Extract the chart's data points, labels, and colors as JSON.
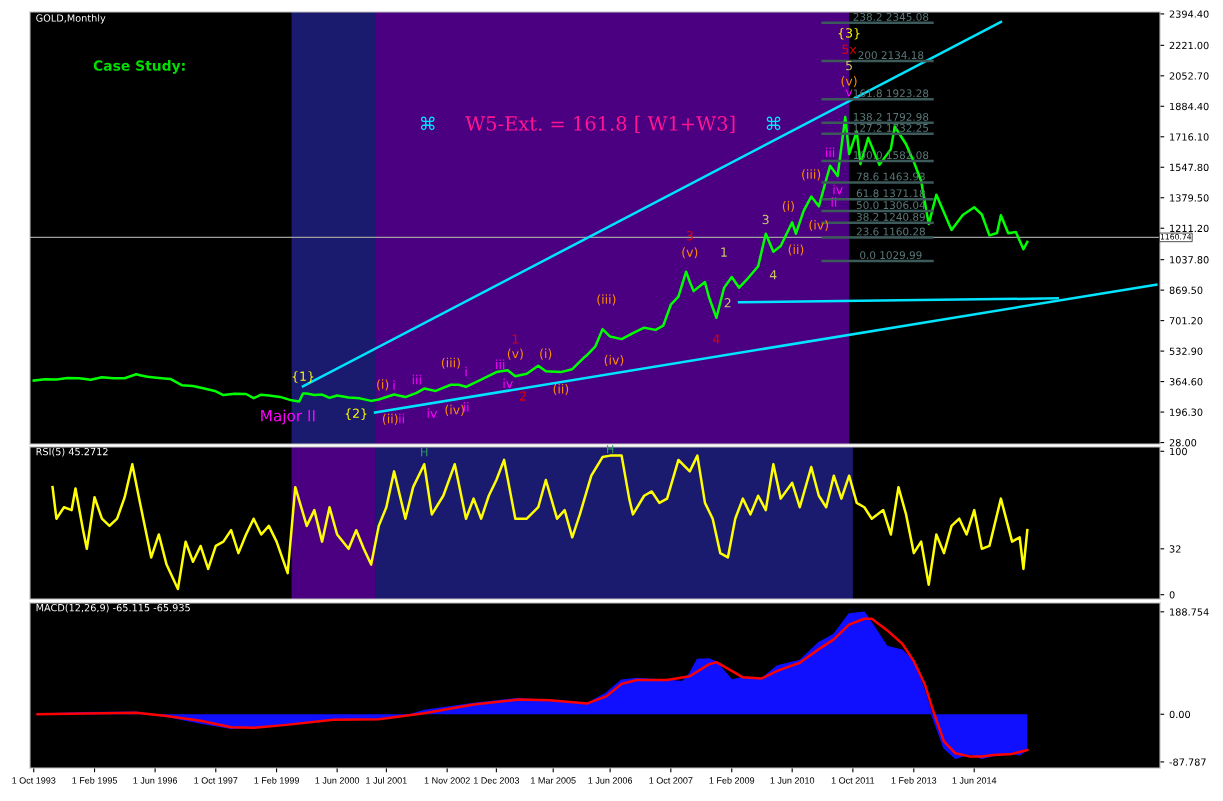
{
  "chart_data": [
    {
      "type": "line",
      "title": "GOLD,Monthly",
      "tick_labels": "y",
      "xlim": [
        "1993-09",
        "2018-07"
      ],
      "ylim": [
        20,
        2405
      ],
      "yticks": [
        {
          "value": 28,
          "label": "28.00"
        },
        {
          "value": 196.3,
          "label": "196.30"
        },
        {
          "value": 364.6,
          "label": "364.60"
        },
        {
          "value": 532.9,
          "label": "532.90"
        },
        {
          "value": 701.2,
          "label": "701.20"
        },
        {
          "value": 869.5,
          "label": "869.50"
        },
        {
          "value": 1037.8,
          "label": "1037.80"
        },
        {
          "value": 1211.2,
          "label": "1211.20"
        },
        {
          "value": 1379.5,
          "label": "1379.50"
        },
        {
          "value": 1547.8,
          "label": "1547.80"
        },
        {
          "value": 1716.1,
          "label": "1716.10"
        },
        {
          "value": 1884.4,
          "label": "1884.40"
        },
        {
          "value": 2052.7,
          "label": "2052.70"
        },
        {
          "value": 2221,
          "label": "2221.00"
        },
        {
          "value": 2394.4,
          "label": "2394.40"
        }
      ],
      "bands": [
        {
          "axis": "x",
          "from": "1999-06",
          "to": "2001-04",
          "color": "#1a1a6e"
        },
        {
          "axis": "x",
          "from": "2001-04",
          "to": "2011-09",
          "color": "#4b0082"
        }
      ],
      "ref_lines": [
        {
          "axis": "y",
          "value": 1160.74,
          "label": "1160.74",
          "color": "#a0a0a0"
        }
      ],
      "series": [
        {
          "color": "#00ff00",
          "x": [
            "1993-10",
            "1994-01",
            "1994-04",
            "1994-07",
            "1994-10",
            "1995-01",
            "1995-04",
            "1995-07",
            "1995-10",
            "1996-01",
            "1996-02",
            "1996-04",
            "1996-07",
            "1996-10",
            "1997-01",
            "1997-04",
            "1997-07",
            "1997-10",
            "1997-12",
            "1998-03",
            "1998-06",
            "1998-08",
            "1998-10",
            "1998-12",
            "1999-03",
            "1999-06",
            "1999-08",
            "1999-09",
            "1999-10",
            "1999-12",
            "2000-02",
            "2000-04",
            "2000-06",
            "2000-09",
            "2000-12",
            "2001-03",
            "2001-05",
            "2001-09",
            "2001-12",
            "2002-03",
            "2002-05",
            "2002-08",
            "2002-12",
            "2003-02",
            "2003-04",
            "2003-08",
            "2003-12",
            "2004-03",
            "2004-05",
            "2004-08",
            "2004-11",
            "2005-01",
            "2005-05",
            "2005-08",
            "2005-11",
            "2005-12",
            "2006-02",
            "2006-04",
            "2006-06",
            "2006-09",
            "2006-12",
            "2007-03",
            "2007-06",
            "2007-08",
            "2007-10",
            "2007-12",
            "2008-02",
            "2008-03",
            "2008-04",
            "2008-07",
            "2008-08",
            "2008-10",
            "2008-12",
            "2009-02",
            "2009-04",
            "2009-06",
            "2009-09",
            "2009-11",
            "2010-01",
            "2010-03",
            "2010-06",
            "2010-07",
            "2010-09",
            "2010-11",
            "2011-01",
            "2011-04",
            "2011-06",
            "2011-08",
            "2011-09",
            "2011-11",
            "2011-12",
            "2012-02",
            "2012-05",
            "2012-08",
            "2012-09",
            "2012-12",
            "2013-02",
            "2013-04",
            "2013-06",
            "2013-08",
            "2013-12",
            "2014-03",
            "2014-06",
            "2014-08",
            "2014-10",
            "2014-12",
            "2015-01",
            "2015-03",
            "2015-05",
            "2015-07",
            "2015-08"
          ],
          "values": [
            370,
            377,
            376,
            384,
            383,
            375,
            389,
            383,
            383,
            405,
            400,
            391,
            385,
            379,
            345,
            340,
            326,
            311,
            290,
            297,
            296,
            273,
            292,
            288,
            280,
            261,
            255,
            299,
            299,
            290,
            293,
            275,
            288,
            277,
            272,
            258,
            266,
            293,
            279,
            302,
            326,
            313,
            347,
            347,
            336,
            375,
            417,
            427,
            394,
            408,
            452,
            422,
            417,
            433,
            496,
            513,
            557,
            654,
            613,
            599,
            632,
            662,
            650,
            673,
            789,
            834,
            971,
            916,
            864,
            914,
            833,
            717,
            882,
            942,
            883,
            927,
            1001,
            1181,
            1081,
            1113,
            1244,
            1181,
            1307,
            1386,
            1332,
            1556,
            1500,
            1825,
            1620,
            1746,
            1565,
            1710,
            1561,
            1648,
            1773,
            1675,
            1578,
            1472,
            1234,
            1396,
            1202,
            1284,
            1327,
            1287,
            1172,
            1185,
            1283,
            1183,
            1190,
            1095,
            1135
          ]
        },
        {
          "color": "#00e5ff",
          "x": [
            "1999-09",
            "2015-01"
          ],
          "values": [
            338,
            2350
          ]
        },
        {
          "color": "#00e5ff",
          "x": [
            "2001-04",
            "2018-06"
          ],
          "values": [
            194,
            900
          ]
        },
        {
          "color": "#00e5ff",
          "x": [
            "2016-04",
            "2009-04"
          ],
          "values": [
            824,
            802
          ]
        },
        {
          "color": "#3c5a5a",
          "x": [
            "2011-02",
            "2013-07"
          ],
          "values": [
            2345.08,
            2345.08
          ]
        },
        {
          "color": "#3c5a5a",
          "x": [
            "2011-02",
            "2013-07"
          ],
          "values": [
            2134.18,
            2134.18
          ]
        },
        {
          "color": "#3c5a5a",
          "x": [
            "2011-02",
            "2013-07"
          ],
          "values": [
            1923.28,
            1923.28
          ]
        },
        {
          "color": "#3c5a5a",
          "x": [
            "2011-02",
            "2013-07"
          ],
          "values": [
            1792.98,
            1792.98
          ]
        },
        {
          "color": "#3c5a5a",
          "x": [
            "2011-02",
            "2013-07"
          ],
          "values": [
            1732.25,
            1732.25
          ]
        },
        {
          "color": "#3c5a5a",
          "x": [
            "2011-02",
            "2013-07"
          ],
          "values": [
            1582.08,
            1582.08
          ]
        },
        {
          "color": "#3c5a5a",
          "x": [
            "2011-02",
            "2013-07"
          ],
          "values": [
            1463.93,
            1463.93
          ]
        },
        {
          "color": "#3c5a5a",
          "x": [
            "2011-02",
            "2013-07"
          ],
          "values": [
            1371.18,
            1371.18
          ]
        },
        {
          "color": "#3c5a5a",
          "x": [
            "2011-02",
            "2013-07"
          ],
          "values": [
            1306.04,
            1306.04
          ]
        },
        {
          "color": "#3c5a5a",
          "x": [
            "2011-02",
            "2013-07"
          ],
          "values": [
            1240.89,
            1240.89
          ]
        },
        {
          "color": "#3c5a5a",
          "x": [
            "2011-02",
            "2013-07"
          ],
          "values": [
            1160.28,
            1160.28
          ]
        },
        {
          "color": "#3c5a5a",
          "x": [
            "2011-02",
            "2013-07"
          ],
          "values": [
            1029.99,
            1029.99
          ]
        }
      ],
      "annotations": [
        "Case Study:",
        "⌘",
        "W5-Ext. = 161.8 [ W1+W3]",
        "⌘",
        "{1}",
        "Major II",
        "{2}",
        "{3}",
        "5x",
        "5",
        "(v)",
        "v",
        "3",
        "(v)",
        "4",
        "1",
        "2",
        "3",
        "4",
        "(i)",
        "(ii)",
        "(iii)",
        "(iv)",
        "iii",
        "ii",
        "iv",
        "(i)",
        "(ii)",
        "i",
        "ii",
        "iii",
        "iv",
        "(iii)",
        "(iv)",
        "i",
        "ii",
        "iii",
        "iv",
        "(v)",
        "1",
        "2",
        "(i)",
        "(ii)",
        "(iii)",
        "(iv)",
        {
          "text": "238.2 2345.08",
          "x": "2012-08",
          "y": 2345.08
        },
        {
          "text": "200 2134.18",
          "x": "2012-08",
          "y": 2134.18
        },
        {
          "text": "161.8 1923.28",
          "x": "2012-08",
          "y": 1923.28
        },
        {
          "text": "138.2 1792.98",
          "x": "2012-08",
          "y": 1792.98
        },
        {
          "text": "127.2 1732.25",
          "x": "2012-08",
          "y": 1732.25
        },
        {
          "text": "100.0 1582.08",
          "x": "2012-08",
          "y": 1582.08
        },
        {
          "text": "78.6 1463.93",
          "x": "2012-08",
          "y": 1463.93
        },
        {
          "text": "61.8 1371.18",
          "x": "2012-08",
          "y": 1371.18
        },
        {
          "text": "50.0 1306.04",
          "x": "2012-08",
          "y": 1306.04
        },
        {
          "text": "38.2 1240.89",
          "x": "2012-08",
          "y": 1240.89
        },
        {
          "text": "23.6 1160.28",
          "x": "2012-08",
          "y": 1160.28
        },
        {
          "text": "0.0 1029.99",
          "x": "2012-08",
          "y": 1029.99
        }
      ]
    },
    {
      "type": "line",
      "title": "RSI(5) 45.2712",
      "tick_labels": "y",
      "xlim": [
        "1993-09",
        "2018-07"
      ],
      "ylim": [
        -3,
        103
      ],
      "yticks": [
        0,
        32,
        100
      ],
      "bands": [
        {
          "axis": "x",
          "from": "1999-06",
          "to": "2001-04",
          "color": "#4b0082"
        },
        {
          "axis": "x",
          "from": "2001-04",
          "to": "2011-10",
          "color": "#1a1a6e"
        }
      ],
      "series": [
        {
          "color": "#ffff00",
          "x": [
            "1994-03",
            "1994-04",
            "1994-06",
            "1994-08",
            "1994-09",
            "1994-11",
            "1994-12",
            "1995-02",
            "1995-04",
            "1995-06",
            "1995-08",
            "1995-10",
            "1995-12",
            "1996-02",
            "1996-05",
            "1996-07",
            "1996-09",
            "1996-12",
            "1997-02",
            "1997-04",
            "1997-06",
            "1997-08",
            "1997-10",
            "1997-12",
            "1998-02",
            "1998-04",
            "1998-06",
            "1998-08",
            "1998-10",
            "1998-12",
            "1999-02",
            "1999-05",
            "1999-07",
            "1999-10",
            "1999-12",
            "2000-02",
            "2000-04",
            "2000-06",
            "2000-09",
            "2000-11",
            "2001-01",
            "2001-03",
            "2001-05",
            "2001-07",
            "2001-09",
            "2001-12",
            "2002-02",
            "2002-05",
            "2002-07",
            "2002-10",
            "2003-01",
            "2003-04",
            "2003-06",
            "2003-08",
            "2003-10",
            "2003-12",
            "2004-02",
            "2004-05",
            "2004-08",
            "2004-11",
            "2005-01",
            "2005-04",
            "2005-06",
            "2005-08",
            "2005-10",
            "2006-01",
            "2006-04",
            "2006-06",
            "2006-09",
            "2006-11",
            "2006-12",
            "2007-03",
            "2007-05",
            "2007-07",
            "2007-09",
            "2007-12",
            "2008-03",
            "2008-05",
            "2008-07",
            "2008-09",
            "2008-11",
            "2009-01",
            "2009-03",
            "2009-05",
            "2009-07",
            "2009-09",
            "2009-11",
            "2010-01",
            "2010-03",
            "2010-06",
            "2010-08",
            "2010-11",
            "2011-01",
            "2011-03",
            "2011-05",
            "2011-07",
            "2011-09",
            "2011-11",
            "2012-01",
            "2012-03",
            "2012-06",
            "2012-08",
            "2012-10",
            "2012-12",
            "2013-02",
            "2013-04",
            "2013-06",
            "2013-08",
            "2013-10",
            "2013-12",
            "2014-02",
            "2014-04",
            "2014-06",
            "2014-08",
            "2014-10",
            "2015-01",
            "2015-04",
            "2015-06",
            "2015-07",
            "2015-08"
          ],
          "values": [
            75,
            53,
            61,
            59,
            74,
            45,
            32,
            68,
            53,
            48,
            53,
            68,
            91,
            64,
            26,
            42,
            21,
            4,
            37,
            23,
            34,
            18,
            34,
            37,
            45,
            29,
            42,
            53,
            42,
            48,
            37,
            15,
            75,
            48,
            59,
            37,
            61,
            42,
            32,
            45,
            32,
            21,
            48,
            61,
            86,
            53,
            75,
            91,
            56,
            69,
            91,
            53,
            67,
            53,
            69,
            80,
            94,
            53,
            53,
            61,
            80,
            53,
            59,
            40,
            56,
            83,
            96,
            97,
            97,
            67,
            56,
            69,
            72,
            64,
            67,
            94,
            86,
            97,
            64,
            53,
            29,
            26,
            53,
            67,
            56,
            69,
            59,
            91,
            67,
            78,
            61,
            89,
            69,
            61,
            83,
            67,
            83,
            64,
            61,
            53,
            59,
            42,
            75,
            56,
            29,
            37,
            7,
            42,
            29,
            48,
            53,
            42,
            59,
            32,
            34,
            67,
            37,
            40,
            18,
            45
          ]
        }
      ],
      "annotations": [
        {
          "text": "H",
          "x": "2002-05",
          "y": 95
        },
        {
          "text": "H",
          "x": "2006-06",
          "y": 97
        }
      ]
    },
    {
      "type": "line",
      "title": "MACD(12,26,9) -65.115 -65.935",
      "xlim": [
        "1993-09",
        "2018-07"
      ],
      "ylim": [
        -99,
        205
      ],
      "yticks": [
        {
          "value": 188.754,
          "label": "188.754"
        },
        {
          "value": 0,
          "label": "0.00"
        },
        {
          "value": -87.787,
          "label": "-87.787"
        }
      ],
      "xticks": [
        {
          "value": "1993-10-01",
          "label": "1 Oct 1993"
        },
        {
          "value": "1995-02-01",
          "label": "1 Feb 1995"
        },
        {
          "value": "1996-06-01",
          "label": "1 Jun 1996"
        },
        {
          "value": "1997-10-01",
          "label": "1 Oct 1997"
        },
        {
          "value": "1999-02-01",
          "label": "1 Feb 1999"
        },
        {
          "value": "2000-06-01",
          "label": "1 Jun 2000"
        },
        {
          "value": "2001-07-01",
          "label": "1 Jul 2001"
        },
        {
          "value": "2002-11-01",
          "label": "1 Nov 2002"
        },
        {
          "value": "2003-12-01",
          "label": "1 Dec 2003"
        },
        {
          "value": "2005-03-01",
          "label": "1 Mar 2005"
        },
        {
          "value": "2006-06-01",
          "label": "1 Jun 2006"
        },
        {
          "value": "2007-10-01",
          "label": "1 Oct 2007"
        },
        {
          "value": "2009-02-01",
          "label": "1 Feb 2009"
        },
        {
          "value": "2010-06-01",
          "label": "1 Jun 2010"
        },
        {
          "value": "2011-10-01",
          "label": "1 Oct 2011"
        },
        {
          "value": "2013-02-01",
          "label": "1 Feb 2013"
        },
        {
          "value": "2014-06-01",
          "label": "1 Jun 2014"
        }
      ],
      "series": [
        {
          "type": "area",
          "color": "#1010ff",
          "x": [
            "1993-11",
            "1994-11",
            "1996-01",
            "1996-09",
            "1997-06",
            "1998-02",
            "1998-08",
            "1999-04",
            "1999-12",
            "2000-05",
            "2001-05",
            "2002-01",
            "2002-05",
            "2003-06",
            "2004-06",
            "2005-02",
            "2005-12",
            "2006-05",
            "2006-09",
            "2007-01",
            "2007-09",
            "2008-01",
            "2008-03",
            "2008-05",
            "2008-08",
            "2008-10",
            "2009-02",
            "2009-05",
            "2009-10",
            "2010-02",
            "2010-08",
            "2011-01",
            "2011-05",
            "2011-09",
            "2012-01",
            "2012-03",
            "2012-07",
            "2012-11",
            "2013-02",
            "2013-05",
            "2013-07",
            "2013-10",
            "2014-01",
            "2014-05",
            "2014-08",
            "2014-11",
            "2015-04",
            "2015-06",
            "2015-08"
          ],
          "values": [
            0,
            3,
            4,
            -4,
            -16,
            -26,
            -23,
            -19,
            -12,
            -9,
            -9,
            -1,
            7,
            20,
            29,
            24,
            20,
            39,
            63,
            66,
            63,
            60,
            75,
            101,
            102,
            96,
            63,
            68,
            66,
            89,
            99,
            132,
            147,
            185,
            188,
            168,
            125,
            118,
            96,
            42,
            -4,
            -62,
            -81,
            -73,
            -81,
            -76,
            -72,
            -75,
            -65
          ]
        },
        {
          "color": "#ff0000",
          "x": [
            "1993-11",
            "1996-01",
            "1996-09",
            "1997-06",
            "1998-02",
            "1998-08",
            "1999-04",
            "2000-05",
            "2001-05",
            "2002-05",
            "2003-06",
            "2004-06",
            "2005-02",
            "2005-12",
            "2006-05",
            "2006-09",
            "2007-01",
            "2007-09",
            "2008-03",
            "2008-08",
            "2008-10",
            "2009-02",
            "2009-05",
            "2009-10",
            "2010-02",
            "2010-08",
            "2011-01",
            "2011-05",
            "2011-09",
            "2012-01",
            "2012-03",
            "2012-07",
            "2012-11",
            "2013-02",
            "2013-05",
            "2013-07",
            "2013-10",
            "2014-01",
            "2014-05",
            "2014-08",
            "2014-11",
            "2015-04",
            "2015-08"
          ],
          "values": [
            0,
            3,
            -3,
            -12,
            -24,
            -25,
            -20,
            -10,
            -9,
            2,
            18,
            27,
            26,
            20,
            33,
            56,
            63,
            63,
            70,
            92,
            96,
            80,
            68,
            66,
            80,
            95,
            120,
            138,
            165,
            176,
            176,
            155,
            130,
            98,
            55,
            10,
            -50,
            -72,
            -78,
            -78,
            -75,
            -73,
            -66
          ]
        }
      ]
    }
  ]
}
